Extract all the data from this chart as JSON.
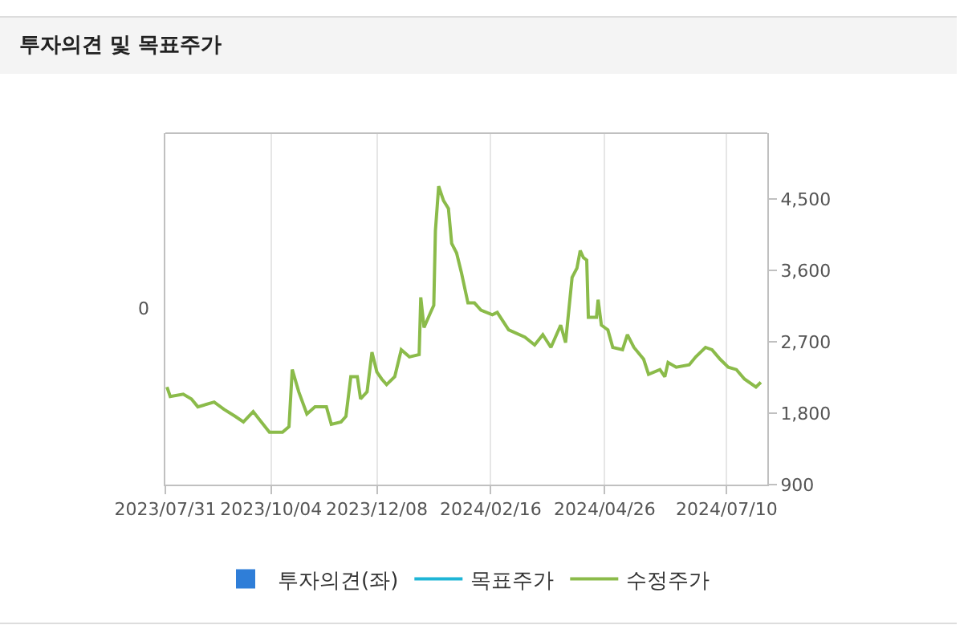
{
  "chart_data": {
    "type": "line",
    "title": "투자의견 및 목표주가",
    "x": [
      "2023-08-01",
      "2023-08-03",
      "2023-08-11",
      "2023-08-16",
      "2023-08-20",
      "2023-08-30",
      "2023-09-05",
      "2023-09-12",
      "2023-09-17",
      "2023-09-23",
      "2023-09-28",
      "2023-10-03",
      "2023-10-11",
      "2023-10-15",
      "2023-10-17",
      "2023-10-21",
      "2023-10-26",
      "2023-10-31",
      "2023-11-07",
      "2023-11-10",
      "2023-11-16",
      "2023-11-19",
      "2023-11-22",
      "2023-11-26",
      "2023-11-28",
      "2023-12-02",
      "2023-12-05",
      "2023-12-08",
      "2023-12-11",
      "2023-12-14",
      "2023-12-19",
      "2023-12-23",
      "2023-12-28",
      "2024-01-03",
      "2024-01-04",
      "2024-01-06",
      "2024-01-10",
      "2024-01-12",
      "2024-01-13",
      "2024-01-15",
      "2024-01-18",
      "2024-01-21",
      "2024-01-23",
      "2024-01-26",
      "2024-01-29",
      "2024-02-02",
      "2024-02-06",
      "2024-02-10",
      "2024-02-17",
      "2024-02-20",
      "2024-02-27",
      "2024-03-08",
      "2024-03-14",
      "2024-03-19",
      "2024-03-24",
      "2024-03-30",
      "2024-04-02",
      "2024-04-06",
      "2024-04-09",
      "2024-04-11",
      "2024-04-13",
      "2024-04-15",
      "2024-04-16",
      "2024-04-21",
      "2024-04-22",
      "2024-04-24",
      "2024-04-28",
      "2024-05-01",
      "2024-05-07",
      "2024-05-10",
      "2024-05-14",
      "2024-05-20",
      "2024-05-23",
      "2024-05-30",
      "2024-06-02",
      "2024-06-04",
      "2024-06-09",
      "2024-06-17",
      "2024-06-21",
      "2024-06-27",
      "2024-07-01",
      "2024-07-06",
      "2024-07-11",
      "2024-07-16",
      "2024-07-21",
      "2024-07-28",
      "2024-07-31"
    ],
    "series": [
      {
        "name": "투자의견(좌)",
        "type": "bar",
        "color": "#2f7ed8",
        "values": [
          null,
          null,
          null,
          null,
          null,
          null,
          null,
          null,
          null,
          null,
          null,
          null,
          null,
          null,
          null,
          null,
          null,
          null,
          null,
          null,
          null,
          null,
          null,
          null,
          null,
          null,
          null,
          null,
          null,
          null,
          null,
          null,
          null,
          null,
          null,
          null,
          null,
          null,
          null,
          null,
          null,
          null,
          null,
          null,
          null,
          null,
          null,
          null,
          null,
          null,
          null,
          null,
          null,
          null,
          null,
          null,
          null,
          null,
          null,
          null,
          null,
          null,
          null,
          null,
          null,
          null,
          null,
          null,
          null,
          null,
          null,
          null,
          null,
          null,
          null,
          null,
          null,
          null,
          null,
          null,
          null,
          null,
          null,
          null,
          null,
          null,
          null
        ]
      },
      {
        "name": "목표주가",
        "type": "line",
        "color": "#1fb5d6",
        "axis": "y2",
        "values": [
          null,
          null,
          null,
          null,
          null,
          null,
          null,
          null,
          null,
          null,
          null,
          null,
          null,
          null,
          null,
          null,
          null,
          null,
          null,
          null,
          null,
          null,
          null,
          null,
          null,
          null,
          null,
          null,
          null,
          null,
          null,
          null,
          null,
          null,
          null,
          null,
          null,
          null,
          null,
          null,
          null,
          null,
          null,
          null,
          null,
          null,
          null,
          null,
          null,
          null,
          null,
          null,
          null,
          null,
          null,
          null,
          null,
          null,
          null,
          null,
          null,
          null,
          null,
          null,
          null,
          null,
          null,
          null,
          null,
          null,
          null,
          null,
          null,
          null,
          null,
          null,
          null,
          null,
          null,
          null,
          null,
          null,
          null,
          null,
          null,
          null,
          null
        ]
      },
      {
        "name": "수정주가",
        "color": "#8bbb4a",
        "axis": "y2",
        "values": [
          2130,
          2010,
          2040,
          1980,
          1880,
          1940,
          1850,
          1760,
          1690,
          1820,
          1690,
          1560,
          1560,
          1630,
          2350,
          2070,
          1790,
          1880,
          1880,
          1660,
          1690,
          1760,
          2260,
          2260,
          1980,
          2070,
          2570,
          2320,
          2230,
          2160,
          2260,
          2600,
          2510,
          2540,
          3260,
          2880,
          3070,
          3160,
          4100,
          4660,
          4480,
          4380,
          3940,
          3820,
          3570,
          3190,
          3190,
          3100,
          3040,
          3070,
          2850,
          2760,
          2660,
          2790,
          2630,
          2910,
          2690,
          3510,
          3630,
          3850,
          3760,
          3730,
          3010,
          3010,
          3230,
          2910,
          2850,
          2630,
          2600,
          2790,
          2630,
          2480,
          2290,
          2350,
          2260,
          2440,
          2380,
          2410,
          2510,
          2630,
          2600,
          2480,
          2380,
          2350,
          2230,
          2130,
          2190
        ]
      }
    ],
    "xlim": [
      "2023-07-31",
      "2024-08-04"
    ],
    "xticks": [
      {
        "value": "2023-07-31",
        "label": "2023/07/31"
      },
      {
        "value": "2023-10-04",
        "label": "2023/10/04"
      },
      {
        "value": "2023-12-08",
        "label": "2023/12/08"
      },
      {
        "value": "2024-02-16",
        "label": "2024/02/16"
      },
      {
        "value": "2024-04-26",
        "label": "2024/04/26"
      },
      {
        "value": "2024-07-10",
        "label": "2024/07/10"
      }
    ],
    "annotations": [
      "0"
    ],
    "y2lim": [
      900,
      5330
    ],
    "y2ticks": [
      900,
      {
        "value": 1800,
        "label": "1,800"
      },
      {
        "value": 2700,
        "label": "2,700"
      },
      {
        "value": 3600,
        "label": "3,600"
      },
      {
        "value": 4500,
        "label": "4,500"
      }
    ],
    "grid": true,
    "legend": "bottom"
  }
}
